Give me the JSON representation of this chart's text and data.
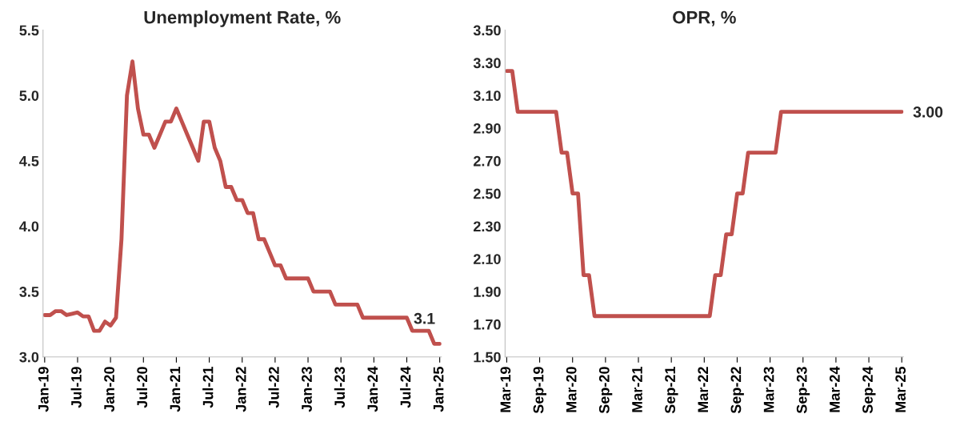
{
  "chart_data": [
    {
      "type": "line",
      "title": "Unemployment Rate, %",
      "categories": [
        "Jan-19",
        null,
        null,
        null,
        null,
        null,
        "Jul-19",
        null,
        null,
        null,
        null,
        null,
        "Jan-20",
        null,
        null,
        null,
        null,
        null,
        "Jul-20",
        null,
        null,
        null,
        null,
        null,
        "Jan-21",
        null,
        null,
        null,
        null,
        null,
        "Jul-21",
        null,
        null,
        null,
        null,
        null,
        "Jan-22",
        null,
        null,
        null,
        null,
        null,
        "Jul-22",
        null,
        null,
        null,
        null,
        null,
        "Jan-23",
        null,
        null,
        null,
        null,
        null,
        "Jul-23",
        null,
        null,
        null,
        null,
        null,
        "Jan-24",
        null,
        null,
        null,
        null,
        null,
        "Jul-24",
        null,
        null,
        null,
        null,
        null,
        "Jan-25"
      ],
      "series": [
        {
          "color": "#c0504d",
          "values": [
            3.32,
            3.32,
            3.35,
            3.35,
            3.32,
            3.33,
            3.34,
            3.31,
            3.31,
            3.2,
            3.2,
            3.27,
            3.24,
            3.3,
            3.9,
            5.0,
            5.26,
            4.9,
            4.7,
            4.7,
            4.6,
            4.7,
            4.8,
            4.8,
            4.9,
            4.8,
            4.7,
            4.6,
            4.5,
            4.8,
            4.8,
            4.6,
            4.5,
            4.3,
            4.3,
            4.2,
            4.2,
            4.1,
            4.1,
            3.9,
            3.9,
            3.8,
            3.7,
            3.7,
            3.6,
            3.6,
            3.6,
            3.6,
            3.6,
            3.5,
            3.5,
            3.5,
            3.5,
            3.4,
            3.4,
            3.4,
            3.4,
            3.4,
            3.3,
            3.3,
            3.3,
            3.3,
            3.3,
            3.3,
            3.3,
            3.3,
            3.3,
            3.2,
            3.2,
            3.2,
            3.2,
            3.1,
            3.1
          ]
        }
      ],
      "ylim": [
        3.0,
        5.5
      ],
      "yticks": [
        {
          "value": 3.0,
          "label": "3.0"
        },
        {
          "value": 3.5,
          "label": "3.5"
        },
        {
          "value": 4.0,
          "label": "4.0"
        },
        {
          "value": 4.5,
          "label": "4.5"
        },
        {
          "value": 5.0,
          "label": "5.0"
        },
        {
          "value": 5.5,
          "label": "5.5"
        }
      ],
      "annotations": [
        {
          "text": "3.1",
          "x": "Jan-25",
          "y": 3.1
        }
      ],
      "grid": false,
      "legend": false
    },
    {
      "type": "line",
      "title": "OPR, %",
      "categories": [
        "Mar-19",
        null,
        null,
        null,
        null,
        null,
        "Sep-19",
        null,
        null,
        null,
        null,
        null,
        "Mar-20",
        null,
        null,
        null,
        null,
        null,
        "Sep-20",
        null,
        null,
        null,
        null,
        null,
        "Mar-21",
        null,
        null,
        null,
        null,
        null,
        "Sep-21",
        null,
        null,
        null,
        null,
        null,
        "Mar-22",
        null,
        null,
        null,
        null,
        null,
        "Sep-22",
        null,
        null,
        null,
        null,
        null,
        "Mar-23",
        null,
        null,
        null,
        null,
        null,
        "Sep-23",
        null,
        null,
        null,
        null,
        null,
        "Mar-24",
        null,
        null,
        null,
        null,
        null,
        "Sep-24",
        null,
        null,
        null,
        null,
        null,
        "Mar-25"
      ],
      "series": [
        {
          "color": "#c0504d",
          "values": [
            3.25,
            3.25,
            3.0,
            3.0,
            3.0,
            3.0,
            3.0,
            3.0,
            3.0,
            3.0,
            2.75,
            2.75,
            2.5,
            2.5,
            2.0,
            2.0,
            1.75,
            1.75,
            1.75,
            1.75,
            1.75,
            1.75,
            1.75,
            1.75,
            1.75,
            1.75,
            1.75,
            1.75,
            1.75,
            1.75,
            1.75,
            1.75,
            1.75,
            1.75,
            1.75,
            1.75,
            1.75,
            1.75,
            2.0,
            2.0,
            2.25,
            2.25,
            2.5,
            2.5,
            2.75,
            2.75,
            2.75,
            2.75,
            2.75,
            2.75,
            3.0,
            3.0,
            3.0,
            3.0,
            3.0,
            3.0,
            3.0,
            3.0,
            3.0,
            3.0,
            3.0,
            3.0,
            3.0,
            3.0,
            3.0,
            3.0,
            3.0,
            3.0,
            3.0,
            3.0,
            3.0,
            3.0,
            3.0
          ]
        }
      ],
      "ylim": [
        1.5,
        3.5
      ],
      "yticks": [
        {
          "value": 1.5,
          "label": "1.50"
        },
        {
          "value": 1.7,
          "label": "1.70"
        },
        {
          "value": 1.9,
          "label": "1.90"
        },
        {
          "value": 2.1,
          "label": "2.10"
        },
        {
          "value": 2.3,
          "label": "2.30"
        },
        {
          "value": 2.5,
          "label": "2.50"
        },
        {
          "value": 2.7,
          "label": "2.70"
        },
        {
          "value": 2.9,
          "label": "2.90"
        },
        {
          "value": 3.1,
          "label": "3.10"
        },
        {
          "value": 3.3,
          "label": "3.30"
        },
        {
          "value": 3.5,
          "label": "3.50"
        }
      ],
      "annotations": [
        {
          "text": "3.00",
          "x": "Mar-25",
          "y": 3.0
        }
      ],
      "grid": false,
      "legend": false
    }
  ]
}
